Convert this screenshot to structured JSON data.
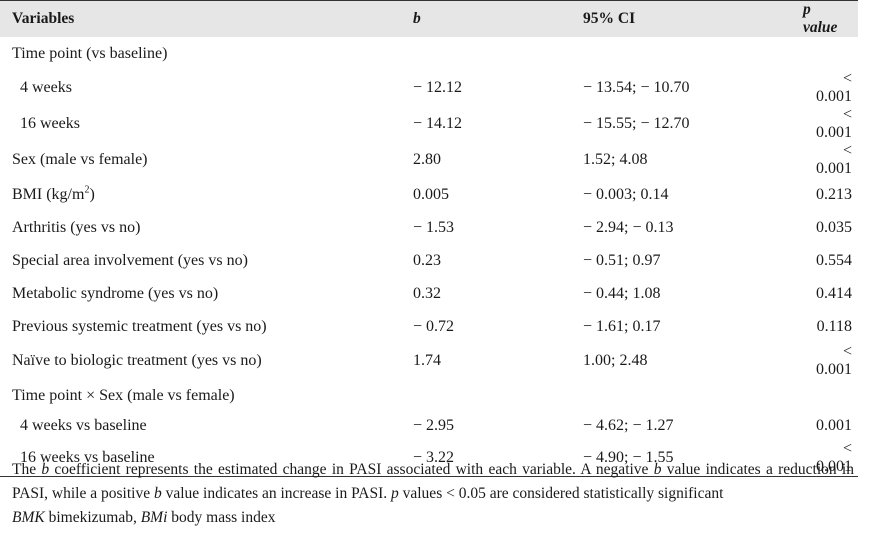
{
  "table": {
    "headers": {
      "variables": "Variables",
      "b": "b",
      "ci": "95% CI",
      "p": "p value"
    },
    "rows": [
      {
        "label": "Time point (vs baseline)",
        "b": "",
        "ci": "",
        "p": "",
        "indent": false,
        "section": true
      },
      {
        "label": "4 weeks",
        "b": "− 12.12",
        "ci": "− 13.54; − 10.70",
        "p": "< 0.001",
        "indent": true
      },
      {
        "label": "16 weeks",
        "b": "− 14.12",
        "ci": "− 15.55; − 12.70",
        "p": "< 0.001",
        "indent": true
      },
      {
        "label": "Sex (male vs female)",
        "b": "2.80",
        "ci": "1.52; 4.08",
        "p": "< 0.001",
        "indent": false
      },
      {
        "label": "BMI (kg/m",
        "label_sup": "2",
        "label_tail": ")",
        "b": "0.005",
        "ci": "− 0.003; 0.14",
        "p": "0.213",
        "indent": false
      },
      {
        "label": "Arthritis (yes vs no)",
        "b": "− 1.53",
        "ci": "− 2.94; − 0.13",
        "p": "0.035",
        "indent": false
      },
      {
        "label": "Special area involvement (yes vs no)",
        "b": "0.23",
        "ci": "− 0.51; 0.97",
        "p": "0.554",
        "indent": false
      },
      {
        "label": "Metabolic syndrome (yes vs no)",
        "b": "0.32",
        "ci": "− 0.44; 1.08",
        "p": "0.414",
        "indent": false
      },
      {
        "label": "Previous systemic treatment (yes vs no)",
        "b": "− 0.72",
        "ci": "− 1.61; 0.17",
        "p": "0.118",
        "indent": false
      },
      {
        "label": "Naïve to biologic treatment (yes vs no)",
        "b": "1.74",
        "ci": "1.00; 2.48",
        "p": "< 0.001",
        "indent": false
      },
      {
        "label": "Time point × Sex (male vs female)",
        "b": "",
        "ci": "",
        "p": "",
        "indent": false,
        "section": true
      },
      {
        "label": "4 weeks vs baseline",
        "b": "− 2.95",
        "ci": "− 4.62; − 1.27",
        "p": "0.001",
        "indent": true
      },
      {
        "label": "16 weeks vs baseline",
        "b": "− 3.22",
        "ci": "− 4.90; − 1.55",
        "p": "< 0.001",
        "indent": true
      }
    ]
  },
  "notes": {
    "n1_a": "The ",
    "n1_b": "b",
    "n1_c": " coefficient represents the estimated change in PASI associated with each variable. A negative ",
    "n1_d": "b",
    "n1_e": " value indicates a reduction in PASI, while a positive ",
    "n1_f": "b",
    "n1_g": " value indicates an increase in PASI. ",
    "n1_h": "p",
    "n1_i": " values < 0.05 are considered statistically significant",
    "n2_a": "BMK",
    "n2_b": " bimekizumab, ",
    "n2_c": "BMi",
    "n2_d": " body mass index"
  }
}
